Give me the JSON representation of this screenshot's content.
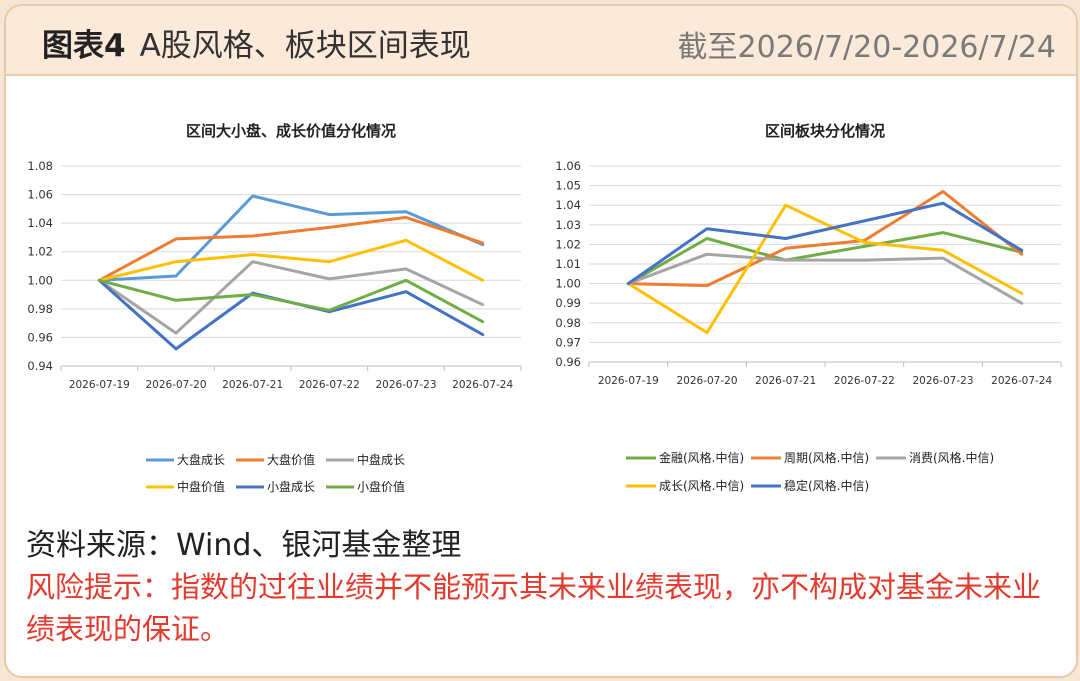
{
  "header": {
    "figure_label": "图表4",
    "title": "A股风格、板块区间表现",
    "date_range": "截至2026/7/20-2026/7/24"
  },
  "footer": {
    "source": "资料来源：Wind、银河基金整理",
    "risk": "风险提示：指数的过往业绩并不能预示其未来业绩表现，亦不构成对基金未来业绩表现的保证。"
  },
  "chart_data": [
    {
      "type": "line",
      "title": "区间大小盘、成长价值分化情况",
      "categories": [
        "2026-07-19",
        "2026-07-20",
        "2026-07-21",
        "2026-07-22",
        "2026-07-23",
        "2026-07-24"
      ],
      "ylim": [
        0.94,
        1.08
      ],
      "yticks": [
        "0.94",
        "0.96",
        "0.98",
        "1.00",
        "1.02",
        "1.04",
        "1.06",
        "1.08"
      ],
      "grid": true,
      "legend_position": "bottom",
      "series": [
        {
          "name": "大盘成长",
          "color": "#5b9bd5",
          "values": [
            1.0,
            1.003,
            1.059,
            1.046,
            1.048,
            1.025
          ]
        },
        {
          "name": "大盘价值",
          "color": "#ed7d31",
          "values": [
            1.0,
            1.029,
            1.031,
            1.037,
            1.044,
            1.026
          ]
        },
        {
          "name": "中盘成长",
          "color": "#a5a5a5",
          "values": [
            1.0,
            0.963,
            1.013,
            1.001,
            1.008,
            0.983
          ]
        },
        {
          "name": "中盘价值",
          "color": "#ffc000",
          "values": [
            1.0,
            1.013,
            1.018,
            1.013,
            1.028,
            1.0
          ]
        },
        {
          "name": "小盘成长",
          "color": "#4472c4",
          "values": [
            1.0,
            0.952,
            0.991,
            0.978,
            0.992,
            0.962
          ]
        },
        {
          "name": "小盘价值",
          "color": "#70ad47",
          "values": [
            1.0,
            0.986,
            0.99,
            0.979,
            1.0,
            0.971
          ]
        }
      ]
    },
    {
      "type": "line",
      "title": "区间板块分化情况",
      "categories": [
        "2026-07-19",
        "2026-07-20",
        "2026-07-21",
        "2026-07-22",
        "2026-07-23",
        "2026-07-24"
      ],
      "ylim": [
        0.96,
        1.06
      ],
      "yticks": [
        "0.96",
        "0.97",
        "0.98",
        "0.99",
        "1.00",
        "1.01",
        "1.02",
        "1.03",
        "1.04",
        "1.05",
        "1.06"
      ],
      "grid": true,
      "legend_position": "bottom",
      "series": [
        {
          "name": "金融(风格.中信)",
          "color": "#70ad47",
          "values": [
            1.0,
            1.023,
            1.012,
            1.019,
            1.026,
            1.016
          ]
        },
        {
          "name": "周期(风格.中信)",
          "color": "#ed7d31",
          "values": [
            1.0,
            0.999,
            1.018,
            1.022,
            1.047,
            1.015
          ]
        },
        {
          "name": "消费(风格.中信)",
          "color": "#a5a5a5",
          "values": [
            1.0,
            1.015,
            1.012,
            1.012,
            1.013,
            0.99
          ]
        },
        {
          "name": "成长(风格.中信)",
          "color": "#ffc000",
          "values": [
            1.0,
            0.975,
            1.04,
            1.021,
            1.017,
            0.995
          ]
        },
        {
          "name": "稳定(风格.中信)",
          "color": "#4472c4",
          "values": [
            1.0,
            1.028,
            1.023,
            1.032,
            1.041,
            1.017
          ]
        }
      ]
    }
  ]
}
